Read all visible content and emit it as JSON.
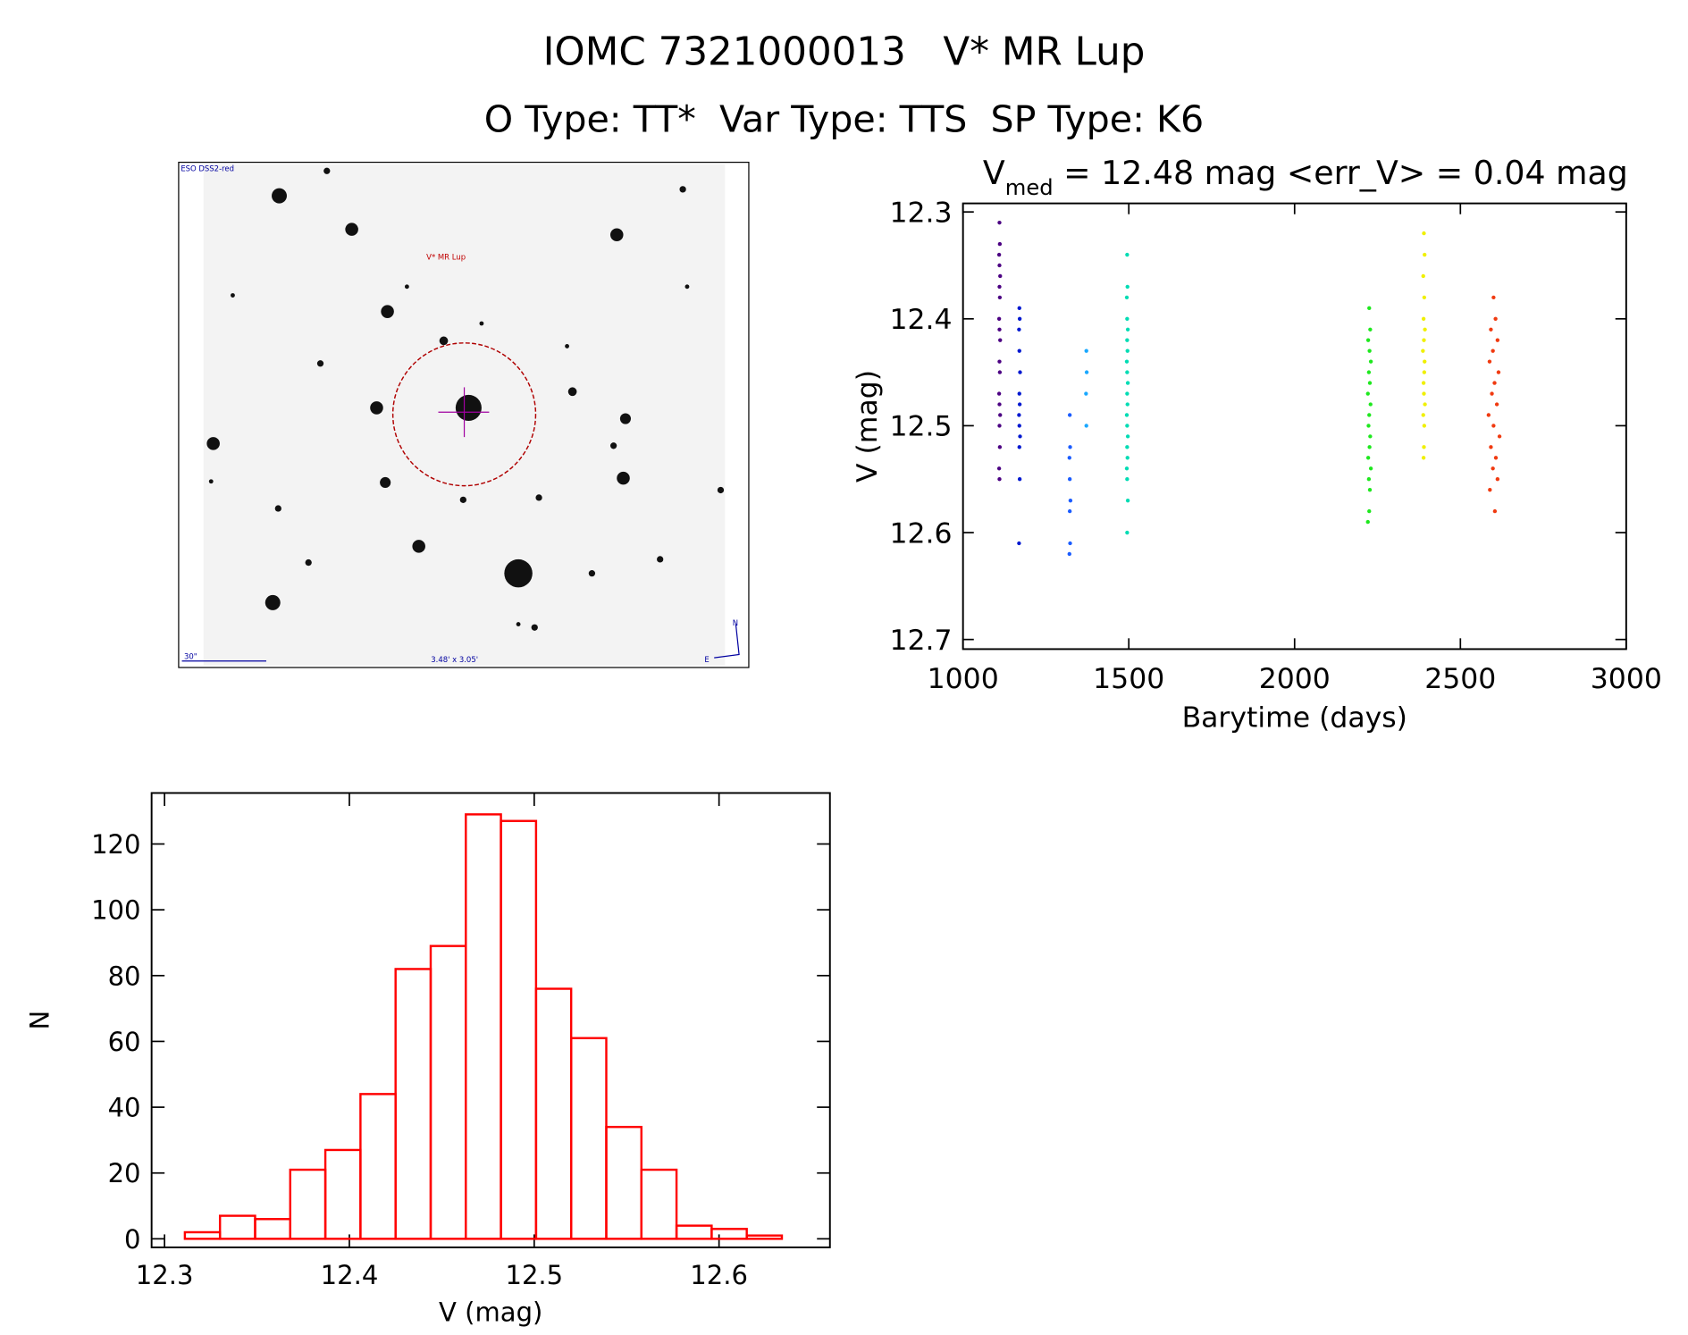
{
  "header": {
    "title": "IOMC 7321000013   V* MR Lup",
    "subtitle": "O Type: TT*  Var Type: TTS  SP Type: K6"
  },
  "finder_chart": {
    "survey": "ESO DSS2-red",
    "target": "V* MR Lup",
    "scale": "30\"",
    "size": "3.48' x 3.05'",
    "north": "N",
    "east": "E"
  },
  "chart_data": [
    {
      "type": "scatter",
      "title": {
        "main": "V",
        "sub": "med",
        "rest": " = 12.48 mag <err_V> = 0.04 mag"
      },
      "xlabel": "Barytime (days)",
      "ylabel": "V (mag)",
      "xlim": [
        1000,
        3000
      ],
      "xticks": [
        1000,
        1500,
        2000,
        2500,
        3000
      ],
      "ylim": [
        12.709,
        12.292
      ],
      "yticks": [
        12.3,
        12.4,
        12.5,
        12.6,
        12.7
      ],
      "series": [
        {
          "color": "#4b0082",
          "x": [
            1110,
            1111,
            1109,
            1110,
            1112,
            1110,
            1111,
            1109,
            1110,
            1112,
            1110,
            1111,
            1109,
            1110,
            1112,
            1110,
            1111,
            1109,
            1110
          ],
          "values": [
            12.31,
            12.33,
            12.34,
            12.35,
            12.36,
            12.37,
            12.38,
            12.4,
            12.41,
            12.42,
            12.44,
            12.45,
            12.47,
            12.48,
            12.49,
            12.5,
            12.52,
            12.54,
            12.55
          ]
        },
        {
          "color": "#0018d0",
          "x": [
            1170,
            1171,
            1169,
            1170,
            1172,
            1170,
            1171,
            1169,
            1170,
            1172,
            1170,
            1171,
            1169
          ],
          "values": [
            12.39,
            12.4,
            12.41,
            12.43,
            12.45,
            12.47,
            12.48,
            12.49,
            12.5,
            12.51,
            12.52,
            12.55,
            12.61
          ]
        },
        {
          "color": "#1a5cff",
          "x": [
            1322,
            1323,
            1321,
            1322,
            1324,
            1322,
            1323,
            1321
          ],
          "values": [
            12.49,
            12.52,
            12.53,
            12.55,
            12.57,
            12.58,
            12.61,
            12.62
          ]
        },
        {
          "color": "#1aa8ff",
          "x": [
            1372,
            1373,
            1371,
            1372
          ],
          "values": [
            12.43,
            12.45,
            12.47,
            12.5
          ]
        },
        {
          "color": "#00dcb4",
          "x": [
            1495,
            1496,
            1494,
            1495,
            1497,
            1495,
            1496,
            1494,
            1495,
            1497,
            1495,
            1496,
            1494,
            1495,
            1497,
            1495,
            1496,
            1494,
            1495,
            1497,
            1495
          ],
          "values": [
            12.34,
            12.37,
            12.38,
            12.4,
            12.41,
            12.42,
            12.43,
            12.44,
            12.45,
            12.46,
            12.47,
            12.48,
            12.49,
            12.5,
            12.51,
            12.52,
            12.53,
            12.54,
            12.55,
            12.57,
            12.6
          ]
        },
        {
          "color": "#1ee81e",
          "x": [
            2225,
            2228,
            2222,
            2226,
            2230,
            2224,
            2227,
            2221,
            2229,
            2225,
            2223,
            2228,
            2226,
            2222,
            2230,
            2224,
            2227,
            2225,
            2221
          ],
          "values": [
            12.39,
            12.41,
            12.42,
            12.43,
            12.44,
            12.45,
            12.46,
            12.47,
            12.48,
            12.49,
            12.5,
            12.51,
            12.52,
            12.53,
            12.54,
            12.55,
            12.56,
            12.58,
            12.59
          ]
        },
        {
          "color": "#f0f000",
          "x": [
            2390,
            2392,
            2388,
            2391,
            2389,
            2393,
            2390,
            2387,
            2392,
            2391,
            2389,
            2390,
            2393,
            2388,
            2391,
            2390,
            2389
          ],
          "values": [
            12.32,
            12.34,
            12.36,
            12.38,
            12.4,
            12.41,
            12.42,
            12.43,
            12.44,
            12.45,
            12.46,
            12.47,
            12.48,
            12.49,
            12.5,
            12.52,
            12.53
          ]
        },
        {
          "color": "#f03a10",
          "x": [
            2600,
            2606,
            2592,
            2612,
            2598,
            2588,
            2615,
            2603,
            2595,
            2610,
            2585,
            2600,
            2618,
            2592,
            2607,
            2598,
            2612,
            2589,
            2604
          ],
          "values": [
            12.38,
            12.4,
            12.41,
            12.42,
            12.43,
            12.44,
            12.45,
            12.46,
            12.47,
            12.48,
            12.49,
            12.5,
            12.51,
            12.52,
            12.53,
            12.54,
            12.55,
            12.56,
            12.58
          ]
        }
      ]
    },
    {
      "type": "histogram",
      "xlabel": "V (mag)",
      "ylabel": "N",
      "color": "#ff0000",
      "bins": [
        12.311,
        12.33,
        12.349,
        12.368,
        12.387,
        12.406,
        12.425,
        12.444,
        12.463,
        12.482,
        12.501,
        12.52,
        12.539,
        12.558,
        12.577,
        12.596,
        12.615,
        12.634
      ],
      "values": [
        2,
        7,
        6,
        21,
        27,
        44,
        82,
        89,
        129,
        127,
        76,
        61,
        34,
        21,
        4,
        3,
        1
      ],
      "xlim": [
        12.293,
        12.66
      ],
      "xticks": [
        12.3,
        12.4,
        12.5,
        12.6
      ],
      "ylim": [
        -2.6,
        135.5
      ],
      "yticks": [
        0,
        20,
        40,
        60,
        80,
        100,
        120
      ]
    }
  ]
}
